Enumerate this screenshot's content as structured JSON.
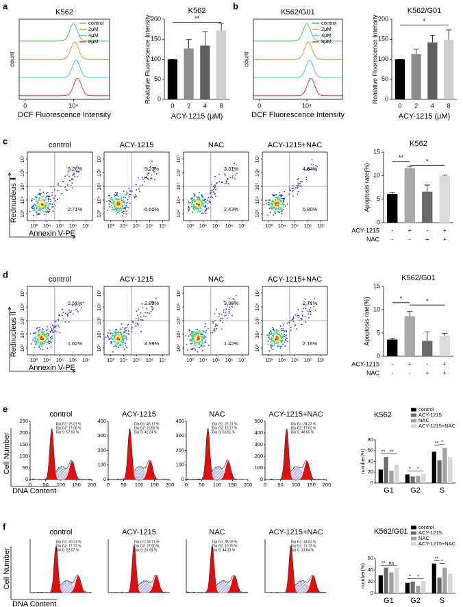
{
  "chart_data": [
    {
      "type": "histogram-overlay",
      "panel_label": "a",
      "title": "K562",
      "xlabel": "DCF Fluorescence Intensity",
      "ylabel": "count",
      "xlim": [
        -0.5,
        7
      ],
      "xticks": [
        {
          "value": 0,
          "label": "0"
        },
        {
          "value": 4,
          "label": "10⁴"
        }
      ],
      "series": [
        {
          "name": "control",
          "color": "#3fd23f"
        },
        {
          "name": "2μM",
          "color": "#f08a30"
        },
        {
          "name": "4μM",
          "color": "#36c4ea"
        },
        {
          "name": "8μM",
          "color": "#e82c2c"
        }
      ]
    },
    {
      "type": "bar",
      "title": "K562",
      "xlabel": "ACY-1215 (μM)",
      "ylabel": "Realative Fluorescence Intensity",
      "categories": [
        "0",
        "2",
        "4",
        "8"
      ],
      "values": [
        100,
        127,
        134,
        172
      ],
      "errors": [
        0,
        22,
        35,
        18
      ],
      "colors": [
        "#000000",
        "#8c8c8c",
        "#5f5f5f",
        "#cfcfcf"
      ],
      "ylim": [
        0,
        200
      ],
      "yticks": [
        0,
        50,
        100,
        150,
        200
      ],
      "significance": [
        {
          "label": "**",
          "from": 0,
          "to": 3,
          "y": 192
        }
      ]
    },
    {
      "type": "histogram-overlay",
      "panel_label": "b",
      "title": "K562/G01",
      "xlabel": "DCF Fluorescence Intensity",
      "ylabel": "count",
      "xlim": [
        -0.5,
        7
      ],
      "xticks": [
        {
          "value": 0,
          "label": "0"
        },
        {
          "value": 4,
          "label": "10⁴"
        }
      ],
      "series": [
        {
          "name": "control",
          "color": "#3fd23f"
        },
        {
          "name": "2μM",
          "color": "#f08a30"
        },
        {
          "name": "4μM",
          "color": "#36c4ea"
        },
        {
          "name": "8μM",
          "color": "#e82c2c"
        }
      ]
    },
    {
      "type": "bar",
      "title": "K562/G01",
      "xlabel": "ACY-1215 (μM)",
      "ylabel": "Realative Fluorescence Intensity",
      "categories": [
        "0",
        "2",
        "4",
        "8"
      ],
      "values": [
        100,
        113,
        142,
        148
      ],
      "errors": [
        0,
        12,
        18,
        25
      ],
      "colors": [
        "#000000",
        "#8c8c8c",
        "#5f5f5f",
        "#cfcfcf"
      ],
      "ylim": [
        0,
        200
      ],
      "yticks": [
        0,
        50,
        100,
        150,
        200
      ],
      "significance": [
        {
          "label": "*",
          "from": 0,
          "to": 3,
          "y": 185
        }
      ]
    },
    {
      "type": "dot-plots",
      "panel_label": "c",
      "xlabel": "Annexin V-PE",
      "ylabel": "Rednucleus Ⅱ",
      "xlim": [
        2.5,
        7.5
      ],
      "ylim": [
        2.5,
        7.5
      ],
      "xticks": [
        {
          "value": 3,
          "label": "10³"
        },
        {
          "value": 4,
          "label": "10⁴"
        },
        {
          "value": 5,
          "label": "10⁵"
        },
        {
          "value": 6,
          "label": "10⁶"
        },
        {
          "value": 7,
          "label": "10⁷"
        }
      ],
      "yticks": [
        {
          "value": 3,
          "label": "10³"
        },
        {
          "value": 4,
          "label": "10⁴"
        },
        {
          "value": 5,
          "label": "10⁵"
        },
        {
          "value": 6,
          "label": "10⁶"
        },
        {
          "value": 7,
          "label": "10⁷"
        }
      ],
      "panels": [
        {
          "title": "control",
          "upper_right": "3.26%",
          "lower_right": "2.71%"
        },
        {
          "title": "ACY-1215",
          "upper_right": "5.23%",
          "lower_right": "6.60%"
        },
        {
          "title": "NAC",
          "upper_right": "3.31%",
          "lower_right": "2.43%"
        },
        {
          "title": "ACY-1215+NAC",
          "upper_right": "4.04%",
          "lower_right": "5.80%"
        }
      ]
    },
    {
      "type": "bar",
      "title": "K562",
      "ylabel": "Apoptosis rate(%)",
      "values": [
        6.1,
        11.6,
        6.6,
        9.9
      ],
      "errors": [
        0.4,
        0.3,
        1.4,
        0.2
      ],
      "colors": [
        "#000000",
        "#a8a8a8",
        "#6a6a6a",
        "#dcdcdc"
      ],
      "ylim": [
        0,
        15
      ],
      "yticks": [
        0,
        5,
        10,
        15
      ],
      "significance": [
        {
          "label": "**",
          "from": 0,
          "to": 1,
          "y": 13
        },
        {
          "label": "*",
          "from": 1,
          "to": 3,
          "y": 12.2
        }
      ],
      "conditions": [
        {
          "name": "ACY-1215",
          "values": [
            "-",
            "+",
            "-",
            "+"
          ]
        },
        {
          "name": "NAC",
          "values": [
            "-",
            "-",
            "+",
            "+"
          ]
        }
      ]
    },
    {
      "type": "dot-plots",
      "panel_label": "d",
      "xlabel": "Annexin V-PE",
      "ylabel": "Rednucleus Ⅱ",
      "xlim": [
        2.5,
        7.5
      ],
      "ylim": [
        2.5,
        7.5
      ],
      "xticks": [
        {
          "value": 3,
          "label": "10³"
        },
        {
          "value": 4,
          "label": "10⁴"
        },
        {
          "value": 5,
          "label": "10⁵"
        },
        {
          "value": 6,
          "label": "10⁶"
        },
        {
          "value": 7,
          "label": "10⁷"
        }
      ],
      "yticks": [
        {
          "value": 3,
          "label": "10³"
        },
        {
          "value": 4,
          "label": "10⁴"
        },
        {
          "value": 5,
          "label": "10⁵"
        },
        {
          "value": 6,
          "label": "10⁶"
        },
        {
          "value": 7,
          "label": "10⁷"
        }
      ],
      "panels": [
        {
          "title": "control",
          "upper_right": "2.51%",
          "lower_right": "1.02%"
        },
        {
          "title": "ACY-1215",
          "upper_right": "2.89%",
          "lower_right": "4.99%"
        },
        {
          "title": "NAC",
          "upper_right": "3.30%",
          "lower_right": "1.42%"
        },
        {
          "title": "ACY-1215+NAC",
          "upper_right": "2.71%",
          "lower_right": "2.16%"
        }
      ]
    },
    {
      "type": "bar",
      "title": "K562/G01",
      "ylabel": "Apoptosis rate(%)",
      "values": [
        3.6,
        8.6,
        3.3,
        4.4
      ],
      "errors": [
        0.2,
        1.0,
        1.9,
        0.5
      ],
      "colors": [
        "#000000",
        "#a8a8a8",
        "#6a6a6a",
        "#dcdcdc"
      ],
      "ylim": [
        0,
        15
      ],
      "yticks": [
        0,
        5,
        10,
        15
      ],
      "significance": [
        {
          "label": "*",
          "from": 0,
          "to": 1,
          "y": 11.5
        },
        {
          "label": "*",
          "from": 1,
          "to": 3,
          "y": 11
        }
      ],
      "conditions": [
        {
          "name": "ACY-1215",
          "values": [
            "-",
            "+",
            "-",
            "+"
          ]
        },
        {
          "name": "NAC",
          "values": [
            "-",
            "-",
            "+",
            "+"
          ]
        }
      ]
    },
    {
      "type": "cell-cycle",
      "panel_label": "e",
      "xlabel": "DNA Content",
      "ylabel": "Cell Number",
      "xlim": [
        0,
        200
      ],
      "xticks": [
        0,
        50,
        100,
        150,
        200
      ],
      "panels": [
        {
          "title": "control",
          "ylim": [
            0,
            250
          ],
          "yticks": [
            0,
            50,
            100,
            150,
            200,
            250
          ],
          "lines": [
            "Dip G1: 25.01 %",
            "Dip G2: 17.06 %",
            "Dip S: 57.93 %"
          ]
        },
        {
          "title": "ACY-1215",
          "ylim": [
            0,
            400
          ],
          "yticks": [
            0,
            100,
            200,
            300,
            400
          ],
          "lines": [
            "Dip G1: 46.17 %",
            "Dip G2: 11.60 %",
            "Dip S: 42.24 %"
          ]
        },
        {
          "title": "NAC",
          "ylim": [
            0,
            400
          ],
          "yticks": [
            0,
            100,
            200,
            300,
            400
          ],
          "lines": [
            "Dip G1: 22.21 %",
            "Dip G2: 12.17 %",
            "Dip S: 65.61 %"
          ]
        },
        {
          "title": "ACY-1215+NAC",
          "ylim": [
            0,
            500
          ],
          "yticks": [
            0,
            100,
            200,
            300,
            400,
            500
          ],
          "lines": [
            "Dip G1: 34.33 %",
            "Dip G2: 17.02 %",
            "Dip S: 48.65 %"
          ]
        }
      ]
    },
    {
      "type": "grouped-bar",
      "title": "K562",
      "ylabel": "number(%)",
      "categories": [
        "G1",
        "G2",
        "S"
      ],
      "ylim": [
        0,
        80
      ],
      "yticks": [
        0,
        20,
        40,
        60,
        80
      ],
      "series": [
        {
          "name": "control",
          "color": "#000000",
          "values": [
            25,
            16,
            58
          ]
        },
        {
          "name": "ACY-1215",
          "color": "#6a6a6a",
          "values": [
            48,
            12,
            42
          ]
        },
        {
          "name": "NAC",
          "color": "#a0a0a0",
          "values": [
            23,
            13,
            65
          ]
        },
        {
          "name": "ACY-1215+NAC",
          "color": "#d6d6d6",
          "values": [
            34,
            17,
            48
          ]
        }
      ],
      "significance": [
        {
          "label": "**",
          "group": 0,
          "from": 0,
          "to": 1,
          "y": 54
        },
        {
          "label": "**",
          "group": 0,
          "from": 1,
          "to": 3,
          "y": 54
        },
        {
          "label": "*",
          "group": 1,
          "from": 0,
          "to": 1,
          "y": 22
        },
        {
          "label": "*",
          "group": 1,
          "from": 1,
          "to": 3,
          "y": 22
        },
        {
          "label": "**",
          "group": 2,
          "from": 0,
          "to": 1,
          "y": 70
        },
        {
          "label": "*",
          "group": 2,
          "from": 1,
          "to": 2,
          "y": 72
        }
      ]
    },
    {
      "type": "cell-cycle",
      "panel_label": "f",
      "xlabel": "DNA Content",
      "ylabel": "Cell Number",
      "panels": [
        {
          "title": "control",
          "lines": [
            "Dip G1: 30.21 %",
            "Dip G2: 17.72 %",
            "Dip S: 52.07 %"
          ]
        },
        {
          "title": "ACY-1215",
          "lines": [
            "Dip G1: 43.71 %",
            "Dip G2: 27.60 %",
            "Dip S: 28.69 %"
          ]
        },
        {
          "title": "NAC",
          "lines": [
            "Dip G1: 35.93 %",
            "Dip G2: 19.75 %",
            "Dip S: 44.33 %"
          ]
        },
        {
          "title": "ACY-1215+NAC",
          "lines": [
            "Dip G1: 44.63 %",
            "Dip G2: 21.73 %",
            "Dip S: 33.64 %"
          ]
        }
      ]
    },
    {
      "type": "grouped-bar",
      "title": "K562/G01",
      "ylabel": "number(%)",
      "categories": [
        "G1",
        "G2",
        "S"
      ],
      "ylim": [
        0,
        60
      ],
      "yticks": [
        0,
        20,
        40,
        60
      ],
      "series": [
        {
          "name": "control",
          "color": "#000000",
          "values": [
            31,
            18,
            51
          ]
        },
        {
          "name": "ACY-1215",
          "color": "#6a6a6a",
          "values": [
            44,
            20,
            27
          ]
        },
        {
          "name": "NAC",
          "color": "#a0a0a0",
          "values": [
            36,
            13,
            44
          ]
        },
        {
          "name": "ACY-1215+NAC",
          "color": "#d6d6d6",
          "values": [
            44,
            21,
            34
          ]
        }
      ],
      "significance": [
        {
          "label": "**",
          "group": 0,
          "from": 0,
          "to": 1,
          "y": 48
        },
        {
          "label": "ns",
          "group": 0,
          "from": 1,
          "to": 3,
          "y": 48
        },
        {
          "label": "*",
          "group": 1,
          "from": 0,
          "to": 1,
          "y": 25
        },
        {
          "label": "*",
          "group": 1,
          "from": 1,
          "to": 3,
          "y": 25
        },
        {
          "label": "**",
          "group": 2,
          "from": 0,
          "to": 1,
          "y": 56
        },
        {
          "label": "*",
          "group": 2,
          "from": 1,
          "to": 2,
          "y": 51
        }
      ]
    }
  ]
}
